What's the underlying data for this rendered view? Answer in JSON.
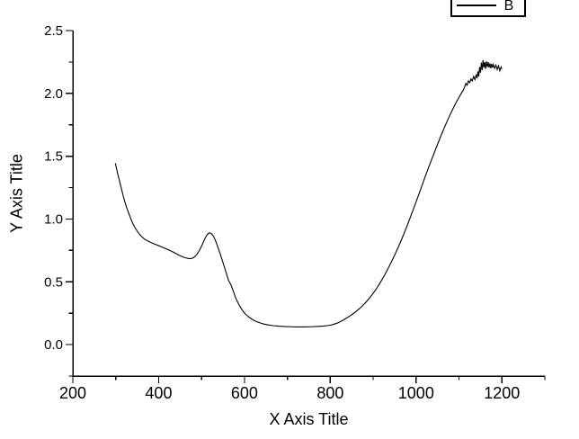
{
  "figure": {
    "background": "#ffffff",
    "foreground": "#000000"
  },
  "chart_data": {
    "type": "line",
    "title": "",
    "xlabel": "X Axis Title",
    "ylabel": "Y Axis Title",
    "xlim": [
      200,
      1300
    ],
    "ylim": [
      -0.25,
      2.5
    ],
    "grid": false,
    "x_major_ticks": [
      200,
      400,
      600,
      800,
      1000,
      1200
    ],
    "x_tick_labels": [
      "200",
      "400",
      "600",
      "800",
      "1000",
      "1200"
    ],
    "x_minor_ticks": [
      300,
      500,
      700,
      900,
      1100,
      1300
    ],
    "y_major_ticks": [
      0.0,
      0.5,
      1.0,
      1.5,
      2.0,
      2.5
    ],
    "y_tick_labels": [
      "0.0",
      "0.5",
      "1.0",
      "1.5",
      "2.0",
      "2.5"
    ],
    "y_minor_ticks": [
      -0.25,
      0.25,
      0.75,
      1.25,
      1.75,
      2.25
    ],
    "legend": {
      "position": "top-right",
      "entries": [
        {
          "label": "B",
          "color": "#000000",
          "line_style": "solid"
        }
      ]
    },
    "series": [
      {
        "name": "B",
        "color": "#000000",
        "points": [
          [
            299,
            1.445
          ],
          [
            302,
            1.4
          ],
          [
            305,
            1.355
          ],
          [
            309,
            1.3
          ],
          [
            313,
            1.245
          ],
          [
            317,
            1.19
          ],
          [
            321,
            1.14
          ],
          [
            326,
            1.085
          ],
          [
            331,
            1.04
          ],
          [
            336,
            0.995
          ],
          [
            341,
            0.955
          ],
          [
            347,
            0.92
          ],
          [
            353,
            0.888
          ],
          [
            360,
            0.862
          ],
          [
            367,
            0.84
          ],
          [
            375,
            0.825
          ],
          [
            383,
            0.812
          ],
          [
            391,
            0.8
          ],
          [
            400,
            0.788
          ],
          [
            409,
            0.775
          ],
          [
            418,
            0.762
          ],
          [
            427,
            0.748
          ],
          [
            436,
            0.733
          ],
          [
            444,
            0.718
          ],
          [
            451,
            0.706
          ],
          [
            458,
            0.696
          ],
          [
            464,
            0.69
          ],
          [
            469,
            0.686
          ],
          [
            474,
            0.684
          ],
          [
            480,
            0.69
          ],
          [
            485,
            0.702
          ],
          [
            490,
            0.722
          ],
          [
            495,
            0.75
          ],
          [
            500,
            0.784
          ],
          [
            505,
            0.822
          ],
          [
            509,
            0.852
          ],
          [
            513,
            0.875
          ],
          [
            516,
            0.886
          ],
          [
            519,
            0.89
          ],
          [
            522,
            0.886
          ],
          [
            526,
            0.872
          ],
          [
            530,
            0.848
          ],
          [
            534,
            0.815
          ],
          [
            538,
            0.775
          ],
          [
            543,
            0.727
          ],
          [
            548,
            0.675
          ],
          [
            553,
            0.62
          ],
          [
            558,
            0.565
          ],
          [
            563,
            0.51
          ],
          [
            568,
            0.48
          ],
          [
            573,
            0.435
          ],
          [
            578,
            0.385
          ],
          [
            583,
            0.345
          ],
          [
            588,
            0.313
          ],
          [
            593,
            0.285
          ],
          [
            598,
            0.26
          ],
          [
            604,
            0.238
          ],
          [
            610,
            0.22
          ],
          [
            617,
            0.203
          ],
          [
            625,
            0.188
          ],
          [
            634,
            0.176
          ],
          [
            644,
            0.165
          ],
          [
            655,
            0.157
          ],
          [
            667,
            0.151
          ],
          [
            680,
            0.147
          ],
          [
            694,
            0.144
          ],
          [
            709,
            0.142
          ],
          [
            724,
            0.141
          ],
          [
            739,
            0.141
          ],
          [
            754,
            0.142
          ],
          [
            769,
            0.144
          ],
          [
            784,
            0.148
          ],
          [
            795,
            0.152
          ],
          [
            804,
            0.158
          ],
          [
            817,
            0.172
          ],
          [
            830,
            0.195
          ],
          [
            843,
            0.222
          ],
          [
            856,
            0.253
          ],
          [
            869,
            0.29
          ],
          [
            882,
            0.333
          ],
          [
            894,
            0.382
          ],
          [
            906,
            0.437
          ],
          [
            917,
            0.497
          ],
          [
            928,
            0.562
          ],
          [
            938,
            0.628
          ],
          [
            948,
            0.698
          ],
          [
            958,
            0.772
          ],
          [
            968,
            0.852
          ],
          [
            978,
            0.937
          ],
          [
            988,
            1.027
          ],
          [
            998,
            1.118
          ],
          [
            1008,
            1.212
          ],
          [
            1018,
            1.307
          ],
          [
            1028,
            1.4
          ],
          [
            1038,
            1.49
          ],
          [
            1048,
            1.578
          ],
          [
            1058,
            1.663
          ],
          [
            1068,
            1.745
          ],
          [
            1078,
            1.822
          ],
          [
            1088,
            1.893
          ],
          [
            1096,
            1.945
          ],
          [
            1104,
            1.993
          ],
          [
            1110,
            2.025
          ],
          [
            1113,
            2.05
          ],
          [
            1116,
            2.08
          ],
          [
            1119,
            2.065
          ],
          [
            1122,
            2.1
          ],
          [
            1125,
            2.085
          ],
          [
            1128,
            2.115
          ],
          [
            1131,
            2.1
          ],
          [
            1134,
            2.135
          ],
          [
            1137,
            2.11
          ],
          [
            1140,
            2.15
          ],
          [
            1142,
            2.12
          ],
          [
            1144,
            2.175
          ],
          [
            1146,
            2.135
          ],
          [
            1148,
            2.21
          ],
          [
            1150,
            2.165
          ],
          [
            1152,
            2.245
          ],
          [
            1154,
            2.185
          ],
          [
            1156,
            2.265
          ],
          [
            1158,
            2.205
          ],
          [
            1160,
            2.25
          ],
          [
            1162,
            2.195
          ],
          [
            1164,
            2.255
          ],
          [
            1166,
            2.21
          ],
          [
            1168,
            2.25
          ],
          [
            1170,
            2.205
          ],
          [
            1172,
            2.24
          ],
          [
            1174,
            2.2
          ],
          [
            1176,
            2.235
          ],
          [
            1178,
            2.205
          ],
          [
            1180,
            2.23
          ],
          [
            1183,
            2.2
          ],
          [
            1186,
            2.225
          ],
          [
            1189,
            2.19
          ],
          [
            1192,
            2.22
          ],
          [
            1195,
            2.18
          ],
          [
            1198,
            2.21
          ],
          [
            1200,
            2.195
          ]
        ]
      }
    ]
  }
}
